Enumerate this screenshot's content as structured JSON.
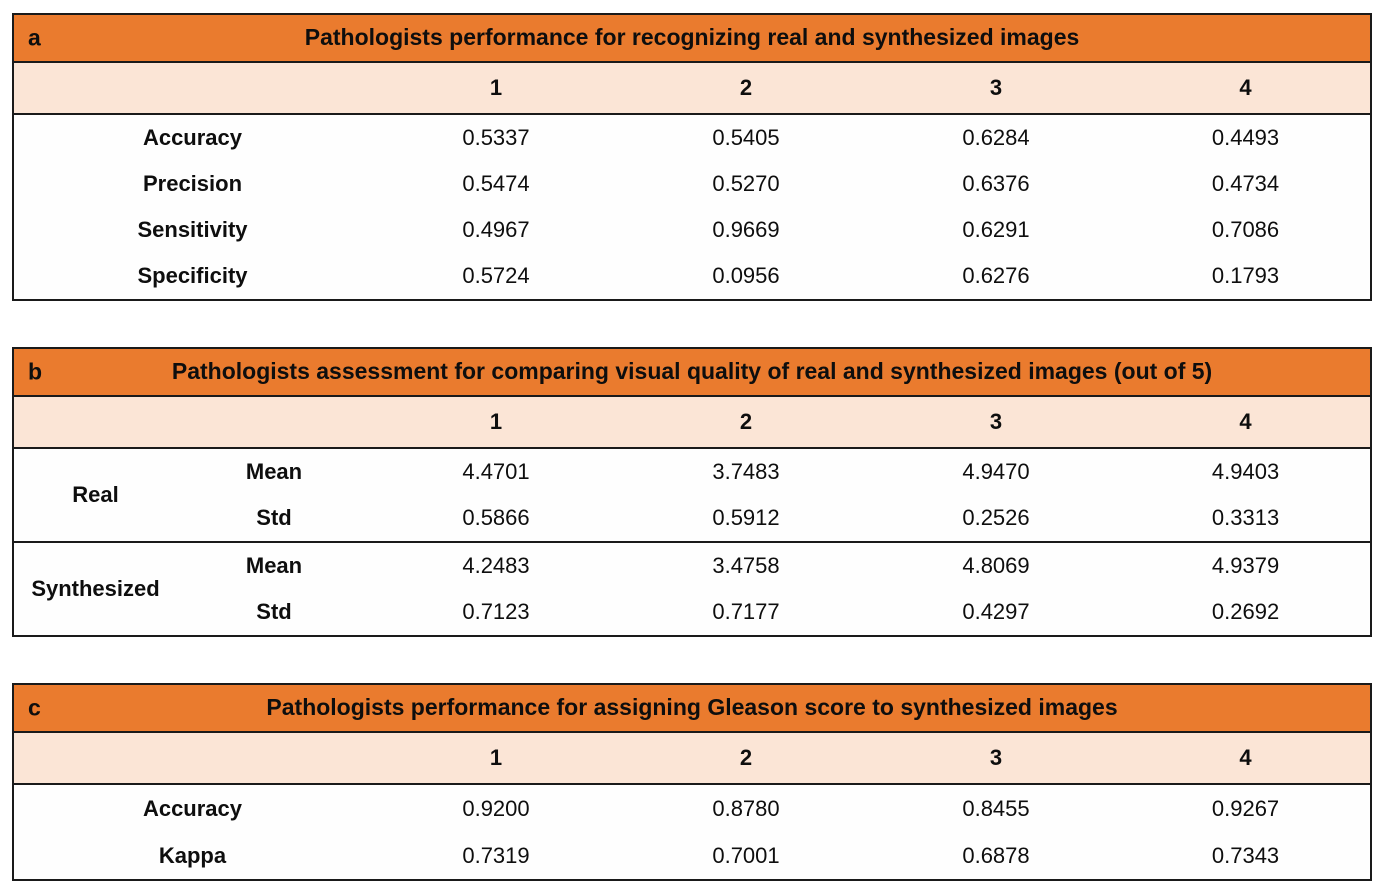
{
  "colors": {
    "header_bg": "#ea7b2e",
    "subheader_bg": "#fbe5d6",
    "border": "#1a1a1a",
    "text": "#0e0e0e",
    "body_bg": "#fefefe"
  },
  "tables": {
    "a": {
      "panel_label": "a",
      "title": "Pathologists performance for recognizing real and synthesized images",
      "col_headers": [
        "1",
        "2",
        "3",
        "4"
      ],
      "rows": [
        {
          "label": "Accuracy",
          "values": [
            "0.5337",
            "0.5405",
            "0.6284",
            "0.4493"
          ]
        },
        {
          "label": "Precision",
          "values": [
            "0.5474",
            "0.5270",
            "0.6376",
            "0.4734"
          ]
        },
        {
          "label": "Sensitivity",
          "values": [
            "0.4967",
            "0.9669",
            "0.6291",
            "0.7086"
          ]
        },
        {
          "label": "Specificity",
          "values": [
            "0.5724",
            "0.0956",
            "0.6276",
            "0.1793"
          ]
        }
      ]
    },
    "b": {
      "panel_label": "b",
      "title": "Pathologists assessment for comparing visual quality of real and synthesized images (out of 5)",
      "col_headers": [
        "1",
        "2",
        "3",
        "4"
      ],
      "groups": [
        {
          "label": "Real",
          "rows": [
            {
              "stat": "Mean",
              "values": [
                "4.4701",
                "3.7483",
                "4.9470",
                "4.9403"
              ]
            },
            {
              "stat": "Std",
              "values": [
                "0.5866",
                "0.5912",
                "0.2526",
                "0.3313"
              ]
            }
          ]
        },
        {
          "label": "Synthesized",
          "rows": [
            {
              "stat": "Mean",
              "values": [
                "4.2483",
                "3.4758",
                "4.8069",
                "4.9379"
              ]
            },
            {
              "stat": "Std",
              "values": [
                "0.7123",
                "0.7177",
                "0.4297",
                "0.2692"
              ]
            }
          ]
        }
      ]
    },
    "c": {
      "panel_label": "c",
      "title": "Pathologists performance for assigning Gleason score to synthesized images",
      "col_headers": [
        "1",
        "2",
        "3",
        "4"
      ],
      "rows": [
        {
          "label": "Accuracy",
          "values": [
            "0.9200",
            "0.8780",
            "0.8455",
            "0.9267"
          ]
        },
        {
          "label": "Kappa",
          "values": [
            "0.7319",
            "0.7001",
            "0.6878",
            "0.7343"
          ]
        }
      ]
    }
  }
}
